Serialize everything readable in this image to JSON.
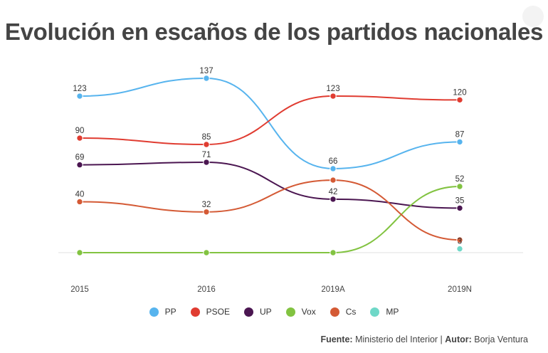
{
  "title": "Evolución en escaños de los partidos nacionales",
  "source": {
    "label1": "Fuente:",
    "text1": " Ministerio del Interior | ",
    "label2": "Autor:",
    "text2": " Borja Ventura"
  },
  "chart_data": {
    "type": "line",
    "title": "Evolución en escaños de los partidos nacionales",
    "categories": [
      "2015",
      "2016",
      "2019A",
      "2019N"
    ],
    "ylim": [
      0,
      140
    ],
    "grid": false,
    "legend_position": "bottom",
    "series": [
      {
        "name": "PP",
        "color": "#57b4ee",
        "values": [
          123,
          137,
          66,
          87
        ]
      },
      {
        "name": "PSOE",
        "color": "#e03c31",
        "values": [
          90,
          85,
          123,
          120
        ]
      },
      {
        "name": "UP",
        "color": "#4b1651",
        "values": [
          69,
          71,
          42,
          35
        ]
      },
      {
        "name": "Vox",
        "color": "#82c341",
        "values": [
          0,
          0,
          0,
          52
        ]
      },
      {
        "name": "Cs",
        "color": "#d45a35",
        "values": [
          40,
          32,
          57,
          10
        ]
      },
      {
        "name": "MP",
        "color": "#6fd8c8",
        "values": [
          null,
          null,
          null,
          3
        ]
      }
    ],
    "data_labels": [
      {
        "series": "PP",
        "index": 0,
        "text": "123"
      },
      {
        "series": "PP",
        "index": 1,
        "text": "137"
      },
      {
        "series": "PP",
        "index": 2,
        "text": "66"
      },
      {
        "series": "PP",
        "index": 3,
        "text": "87"
      },
      {
        "series": "PSOE",
        "index": 0,
        "text": "90"
      },
      {
        "series": "PSOE",
        "index": 1,
        "text": "85"
      },
      {
        "series": "PSOE",
        "index": 2,
        "text": "123"
      },
      {
        "series": "PSOE",
        "index": 3,
        "text": "120"
      },
      {
        "series": "UP",
        "index": 0,
        "text": "69"
      },
      {
        "series": "UP",
        "index": 1,
        "text": "71"
      },
      {
        "series": "UP",
        "index": 2,
        "text": "42"
      },
      {
        "series": "UP",
        "index": 3,
        "text": "35"
      },
      {
        "series": "Vox",
        "index": 3,
        "text": "52"
      },
      {
        "series": "Cs",
        "index": 0,
        "text": "40"
      },
      {
        "series": "Cs",
        "index": 1,
        "text": "32"
      },
      {
        "series": "MP",
        "index": 3,
        "text": "3"
      }
    ]
  }
}
